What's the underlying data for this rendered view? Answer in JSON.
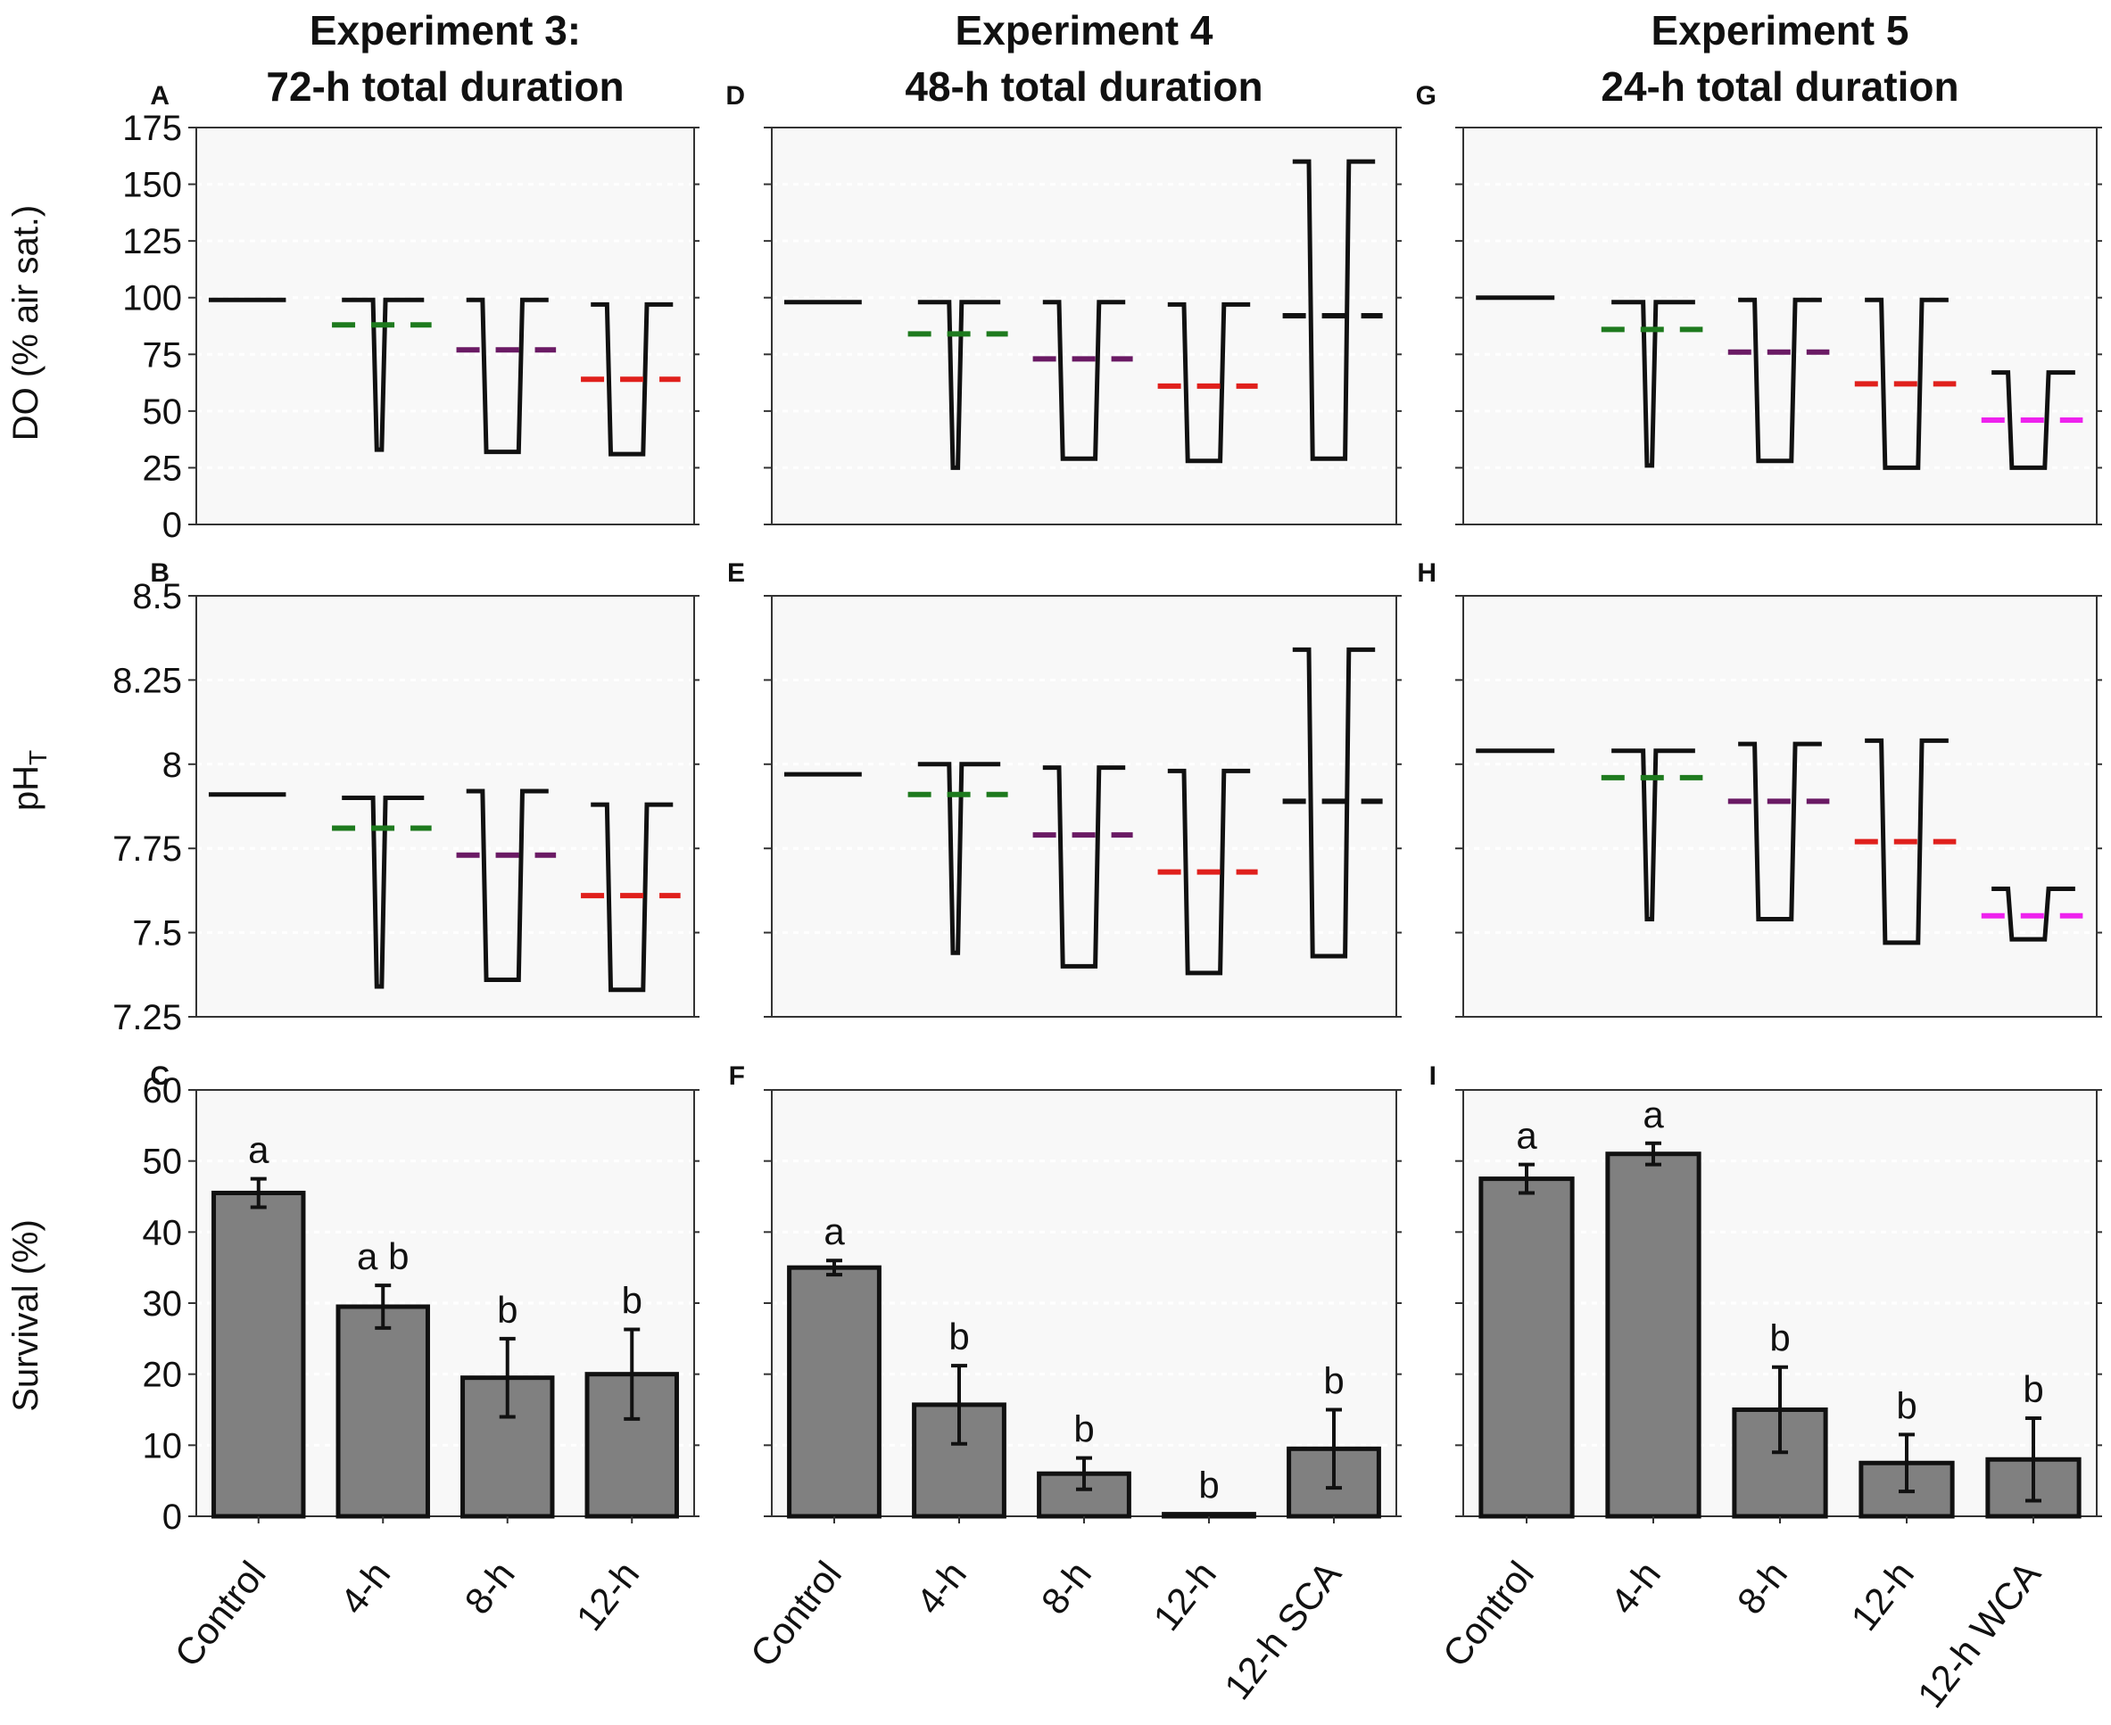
{
  "figure": {
    "row_ylabels": [
      "DO (% air sat.)",
      "pH",
      "Survival (%)"
    ],
    "ph_subscript": "T"
  },
  "chart_data": [
    {
      "column": 0,
      "title_line1": "Experiment 3:",
      "title_line2": "72-h total duration",
      "categories": [
        "Control",
        "4-h",
        "8-h",
        "12-h"
      ],
      "panels": [
        {
          "panel_label": "A",
          "type": "line",
          "ylabel": "DO (% air sat.)",
          "ylim": [
            0,
            175
          ],
          "yticks": [
            0,
            25,
            50,
            75,
            100,
            125,
            150,
            175
          ],
          "yticklabels": [
            "0",
            "25",
            "50",
            "75",
            "100",
            "125",
            "150",
            "175"
          ],
          "series": [
            {
              "name": "Control",
              "type": "flat",
              "value": 99
            },
            {
              "name": "4-h",
              "type": "trough",
              "high": 99,
              "low": 33,
              "mean": 88,
              "mean_color": "#1e7a1e",
              "narrow": true
            },
            {
              "name": "8-h",
              "type": "trough",
              "high": 99,
              "low": 32,
              "mean": 77,
              "mean_color": "#6a1a64"
            },
            {
              "name": "12-h",
              "type": "trough",
              "high": 97,
              "low": 31,
              "mean": 64,
              "mean_color": "#e0201c"
            }
          ]
        },
        {
          "panel_label": "B",
          "type": "line",
          "ylabel": "pH",
          "ylim": [
            7.25,
            8.5
          ],
          "yticks": [
            7.25,
            7.5,
            7.75,
            8.0,
            8.25,
            8.5
          ],
          "yticklabels": [
            "7.25",
            "7.5",
            "7.75",
            "8",
            "8.25",
            "8.5"
          ],
          "series": [
            {
              "name": "Control",
              "type": "flat",
              "value": 7.91
            },
            {
              "name": "4-h",
              "type": "trough",
              "high": 7.9,
              "low": 7.34,
              "mean": 7.81,
              "mean_color": "#1e7a1e",
              "narrow": true
            },
            {
              "name": "8-h",
              "type": "trough",
              "high": 7.92,
              "low": 7.36,
              "mean": 7.73,
              "mean_color": "#6a1a64"
            },
            {
              "name": "12-h",
              "type": "trough",
              "high": 7.88,
              "low": 7.33,
              "mean": 7.61,
              "mean_color": "#e0201c"
            }
          ]
        },
        {
          "panel_label": "C",
          "type": "bar",
          "ylabel": "Survival (%)",
          "ylim": [
            0,
            60
          ],
          "yticks": [
            0,
            10,
            20,
            30,
            40,
            50,
            60
          ],
          "yticklabels": [
            "0",
            "10",
            "20",
            "30",
            "40",
            "50",
            "60"
          ],
          "values": [
            45.5,
            29.5,
            19.5,
            20
          ],
          "errors": [
            2,
            3,
            5.5,
            6.3
          ],
          "letters": [
            "a",
            "a b",
            "b",
            "b"
          ]
        }
      ]
    },
    {
      "column": 1,
      "title_line1": "Experiment 4",
      "title_line2": "48-h total duration",
      "categories": [
        "Control",
        "4-h",
        "8-h",
        "12-h",
        "12-h SCA"
      ],
      "panels": [
        {
          "panel_label": "D",
          "type": "line",
          "ylabel": "DO (% air sat.)",
          "ylim": [
            0,
            175
          ],
          "yticks": [
            0,
            25,
            50,
            75,
            100,
            125,
            150,
            175
          ],
          "series": [
            {
              "name": "Control",
              "type": "flat",
              "value": 98
            },
            {
              "name": "4-h",
              "type": "trough",
              "high": 98,
              "low": 25,
              "mean": 84,
              "mean_color": "#1e7a1e",
              "narrow": true
            },
            {
              "name": "8-h",
              "type": "trough",
              "high": 98,
              "low": 29,
              "mean": 73,
              "mean_color": "#6a1a64"
            },
            {
              "name": "12-h",
              "type": "trough",
              "high": 97,
              "low": 28,
              "mean": 61,
              "mean_color": "#e0201c"
            },
            {
              "name": "12-h SCA",
              "type": "trough",
              "high": 160,
              "low": 29,
              "mean": 92,
              "mean_color": "#111111"
            }
          ]
        },
        {
          "panel_label": "E",
          "type": "line",
          "ylabel": "pH",
          "ylim": [
            7.25,
            8.5
          ],
          "yticks": [
            7.25,
            7.5,
            7.75,
            8.0,
            8.25,
            8.5
          ],
          "series": [
            {
              "name": "Control",
              "type": "flat",
              "value": 7.97
            },
            {
              "name": "4-h",
              "type": "trough",
              "high": 8.0,
              "low": 7.44,
              "mean": 7.91,
              "mean_color": "#1e7a1e",
              "narrow": true
            },
            {
              "name": "8-h",
              "type": "trough",
              "high": 7.99,
              "low": 7.4,
              "mean": 7.79,
              "mean_color": "#6a1a64"
            },
            {
              "name": "12-h",
              "type": "trough",
              "high": 7.98,
              "low": 7.38,
              "mean": 7.68,
              "mean_color": "#e0201c"
            },
            {
              "name": "12-h SCA",
              "type": "trough",
              "high": 8.34,
              "low": 7.43,
              "mean": 7.89,
              "mean_color": "#111111"
            }
          ]
        },
        {
          "panel_label": "F",
          "type": "bar",
          "ylabel": "Survival (%)",
          "ylim": [
            0,
            60
          ],
          "yticks": [
            0,
            10,
            20,
            30,
            40,
            50,
            60
          ],
          "values": [
            35,
            15.7,
            6,
            0.3,
            9.5
          ],
          "errors": [
            1,
            5.5,
            2.2,
            0,
            5.5
          ],
          "letters": [
            "a",
            "b",
            "b",
            "b",
            "b"
          ]
        }
      ]
    },
    {
      "column": 2,
      "title_line1": "Experiment 5",
      "title_line2": "24-h total duration",
      "categories": [
        "Control",
        "4-h",
        "8-h",
        "12-h",
        "12-h WCA"
      ],
      "panels": [
        {
          "panel_label": "G",
          "type": "line",
          "ylabel": "DO (% air sat.)",
          "ylim": [
            0,
            175
          ],
          "yticks": [
            0,
            25,
            50,
            75,
            100,
            125,
            150,
            175
          ],
          "series": [
            {
              "name": "Control",
              "type": "flat",
              "value": 100
            },
            {
              "name": "4-h",
              "type": "trough",
              "high": 98,
              "low": 26,
              "mean": 86,
              "mean_color": "#1e7a1e",
              "narrow": true
            },
            {
              "name": "8-h",
              "type": "trough",
              "high": 99,
              "low": 28,
              "mean": 76,
              "mean_color": "#6a1a64"
            },
            {
              "name": "12-h",
              "type": "trough",
              "high": 99,
              "low": 25,
              "mean": 62,
              "mean_color": "#e0201c"
            },
            {
              "name": "12-h WCA",
              "type": "trough",
              "high": 67,
              "low": 25,
              "mean": 46,
              "mean_color": "#ee22ee"
            }
          ]
        },
        {
          "panel_label": "H",
          "type": "line",
          "ylabel": "pH",
          "ylim": [
            7.25,
            8.5
          ],
          "yticks": [
            7.25,
            7.5,
            7.75,
            8.0,
            8.25,
            8.5
          ],
          "series": [
            {
              "name": "Control",
              "type": "flat",
              "value": 8.04
            },
            {
              "name": "4-h",
              "type": "trough",
              "high": 8.04,
              "low": 7.54,
              "mean": 7.96,
              "mean_color": "#1e7a1e",
              "narrow": true
            },
            {
              "name": "8-h",
              "type": "trough",
              "high": 8.06,
              "low": 7.54,
              "mean": 7.89,
              "mean_color": "#6a1a64"
            },
            {
              "name": "12-h",
              "type": "trough",
              "high": 8.07,
              "low": 7.47,
              "mean": 7.77,
              "mean_color": "#e0201c"
            },
            {
              "name": "12-h WCA",
              "type": "trough",
              "high": 7.63,
              "low": 7.48,
              "mean": 7.55,
              "mean_color": "#ee22ee"
            }
          ]
        },
        {
          "panel_label": "I",
          "type": "bar",
          "ylabel": "Survival (%)",
          "ylim": [
            0,
            60
          ],
          "yticks": [
            0,
            10,
            20,
            30,
            40,
            50,
            60
          ],
          "values": [
            47.5,
            51,
            15,
            7.5,
            8
          ],
          "errors": [
            2,
            1.5,
            6,
            4,
            5.8
          ],
          "letters": [
            "a",
            "a",
            "b",
            "b",
            "b"
          ]
        }
      ]
    }
  ]
}
